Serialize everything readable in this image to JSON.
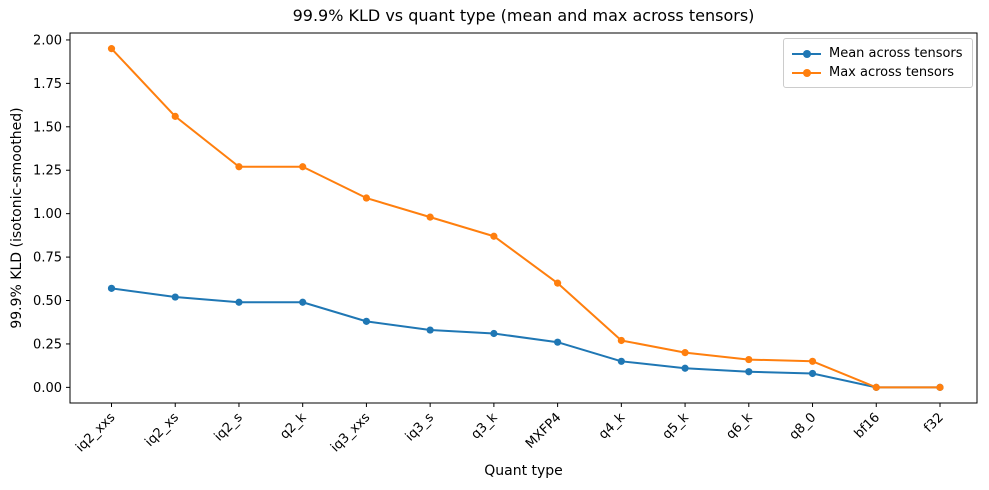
{
  "chart_data": {
    "type": "line",
    "title": "99.9% KLD vs quant type (mean and max across tensors)",
    "xlabel": "Quant type",
    "ylabel": "99.9% KLD (isotonic-smoothed)",
    "categories": [
      "iq2_xxs",
      "iq2_xs",
      "iq2_s",
      "q2_k",
      "iq3_xxs",
      "iq3_s",
      "q3_k",
      "MXFP4",
      "q4_k",
      "q5_k",
      "q6_k",
      "q8_0",
      "bf16",
      "f32"
    ],
    "series": [
      {
        "name": "Mean across tensors",
        "color": "#1f77b4",
        "marker": "circle",
        "values": [
          0.57,
          0.52,
          0.49,
          0.49,
          0.38,
          0.33,
          0.31,
          0.26,
          0.15,
          0.11,
          0.09,
          0.08,
          0.0,
          0.0
        ]
      },
      {
        "name": "Max across tensors",
        "color": "#ff7f0e",
        "marker": "circle",
        "values": [
          1.95,
          1.56,
          1.27,
          1.27,
          1.09,
          0.98,
          0.87,
          0.6,
          0.27,
          0.2,
          0.16,
          0.15,
          0.0,
          0.0
        ]
      }
    ],
    "yticks": [
      0.0,
      0.25,
      0.5,
      0.75,
      1.0,
      1.25,
      1.5,
      1.75,
      2.0
    ],
    "ylim": [
      -0.09,
      2.04
    ],
    "grid": false,
    "legend_position": "upper right",
    "x_tick_rotation_deg": 45,
    "axis_color": "#000000",
    "background_color": "#ffffff"
  }
}
